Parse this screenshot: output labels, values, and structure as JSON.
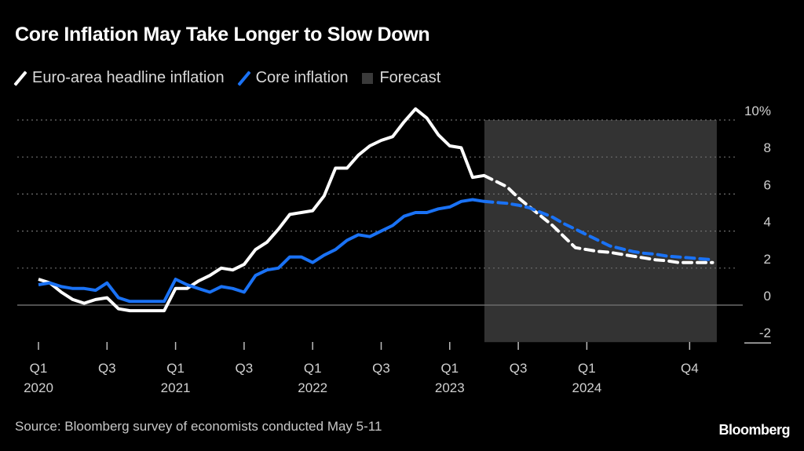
{
  "header": {
    "title": "Core Inflation May Take Longer to Slow Down"
  },
  "legend": [
    {
      "label": "Euro-area headline inflation",
      "icon": "line-swatch-icon",
      "color": "#ffffff"
    },
    {
      "label": "Core inflation",
      "icon": "line-swatch-icon",
      "color": "#1a72f5"
    },
    {
      "label": "Forecast",
      "icon": "box-swatch-icon",
      "color": "#3a3a3a"
    }
  ],
  "footer": {
    "source": "Source: Bloomberg survey of economists conducted May 5-11",
    "brand": "Bloomberg"
  },
  "chart_data": {
    "type": "line",
    "title": "Core Inflation May Take Longer to Slow Down",
    "xlabel": "",
    "ylabel": "",
    "ylim": [
      -2,
      10
    ],
    "y_ticks": [
      {
        "value": 10,
        "label": "10%"
      },
      {
        "value": 8,
        "label": "8"
      },
      {
        "value": 6,
        "label": "6"
      },
      {
        "value": 4,
        "label": "4"
      },
      {
        "value": 2,
        "label": "2"
      },
      {
        "value": 0,
        "label": "0"
      },
      {
        "value": -2,
        "label": "-2"
      }
    ],
    "x_start": "2020-01",
    "x_end": "2024-12",
    "x_ticks": [
      {
        "month_index": 0,
        "label": "Q1",
        "sublabel": "2020"
      },
      {
        "month_index": 6,
        "label": "Q3",
        "sublabel": ""
      },
      {
        "month_index": 12,
        "label": "Q1",
        "sublabel": "2021"
      },
      {
        "month_index": 18,
        "label": "Q3",
        "sublabel": ""
      },
      {
        "month_index": 24,
        "label": "Q1",
        "sublabel": "2022"
      },
      {
        "month_index": 30,
        "label": "Q3",
        "sublabel": ""
      },
      {
        "month_index": 36,
        "label": "Q1",
        "sublabel": "2023"
      },
      {
        "month_index": 42,
        "label": "Q3",
        "sublabel": ""
      },
      {
        "month_index": 48,
        "label": "Q1",
        "sublabel": "2024"
      },
      {
        "month_index": 57,
        "label": "Q4",
        "sublabel": ""
      }
    ],
    "grid": true,
    "legend_position": "top-left",
    "forecast_start_index": 39,
    "forecast_end_index": 59,
    "series": [
      {
        "name": "Euro-area headline inflation",
        "color": "#ffffff",
        "actual": [
          1.4,
          1.2,
          0.7,
          0.3,
          0.1,
          0.3,
          0.4,
          -0.2,
          -0.3,
          -0.3,
          -0.3,
          -0.3,
          0.9,
          0.9,
          1.3,
          1.6,
          2.0,
          1.9,
          2.2,
          3.0,
          3.4,
          4.1,
          4.9,
          5.0,
          5.1,
          5.9,
          7.4,
          7.4,
          8.1,
          8.6,
          8.9,
          9.1,
          9.9,
          10.6,
          10.1,
          9.2,
          8.6,
          8.5,
          6.9,
          7.0
        ],
        "forecast": [
          7.0,
          6.7,
          6.4,
          5.8,
          5.3,
          4.8,
          4.3,
          3.7,
          3.1,
          3.0,
          2.9,
          2.85,
          2.75,
          2.65,
          2.55,
          2.45,
          2.4,
          2.3,
          2.3,
          2.3,
          2.3
        ]
      },
      {
        "name": "Core inflation",
        "color": "#1a72f5",
        "actual": [
          1.1,
          1.2,
          1.0,
          0.9,
          0.9,
          0.8,
          1.2,
          0.4,
          0.2,
          0.2,
          0.2,
          0.2,
          1.4,
          1.1,
          0.9,
          0.7,
          1.0,
          0.9,
          0.7,
          1.6,
          1.9,
          2.0,
          2.6,
          2.6,
          2.3,
          2.7,
          3.0,
          3.5,
          3.8,
          3.7,
          4.0,
          4.3,
          4.8,
          5.0,
          5.0,
          5.2,
          5.3,
          5.6,
          5.7,
          5.6
        ],
        "forecast": [
          5.6,
          5.55,
          5.5,
          5.4,
          5.25,
          5.0,
          4.75,
          4.4,
          4.1,
          3.8,
          3.5,
          3.2,
          3.05,
          2.9,
          2.8,
          2.75,
          2.65,
          2.6,
          2.55,
          2.5,
          2.45
        ]
      }
    ]
  }
}
